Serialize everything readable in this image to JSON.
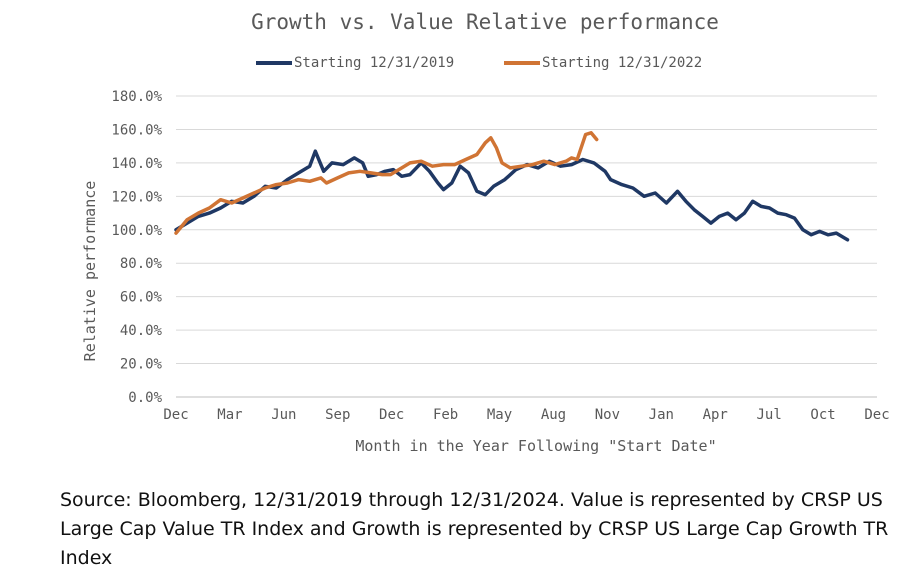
{
  "chart_data": {
    "type": "line",
    "title": "Growth vs. Value Relative performance",
    "xlabel": "Month in the Year Following \"Start Date\"",
    "ylabel": "Relative performance",
    "x_ticks": [
      "Dec",
      "Mar",
      "Jun",
      "Sep",
      "Dec",
      "Feb",
      "May",
      "Aug",
      "Nov",
      "Jan",
      "Apr",
      "Jul",
      "Oct",
      "Dec"
    ],
    "y_ticks": [
      "0.0%",
      "20.0%",
      "40.0%",
      "60.0%",
      "80.0%",
      "100.0%",
      "120.0%",
      "140.0%",
      "160.0%",
      "180.0%"
    ],
    "ylim": [
      0,
      180
    ],
    "x_unit": "trading days since start date",
    "xlim": [
      0,
      1258
    ],
    "grid": true,
    "legend_position": "top",
    "series": [
      {
        "name": "Starting 12/31/2019",
        "color": "#1f3864",
        "points": [
          [
            0,
            100
          ],
          [
            20,
            104
          ],
          [
            40,
            108
          ],
          [
            60,
            110
          ],
          [
            80,
            113
          ],
          [
            100,
            117
          ],
          [
            120,
            116
          ],
          [
            140,
            120
          ],
          [
            160,
            126
          ],
          [
            180,
            125
          ],
          [
            200,
            130
          ],
          [
            220,
            134
          ],
          [
            240,
            138
          ],
          [
            250,
            147
          ],
          [
            265,
            135
          ],
          [
            280,
            140
          ],
          [
            300,
            139
          ],
          [
            320,
            143
          ],
          [
            335,
            140
          ],
          [
            345,
            132
          ],
          [
            360,
            133
          ],
          [
            375,
            135
          ],
          [
            390,
            136
          ],
          [
            405,
            132
          ],
          [
            420,
            133
          ],
          [
            440,
            140
          ],
          [
            455,
            135
          ],
          [
            470,
            128
          ],
          [
            480,
            124
          ],
          [
            495,
            128
          ],
          [
            510,
            138
          ],
          [
            525,
            134
          ],
          [
            540,
            123
          ],
          [
            555,
            121
          ],
          [
            570,
            126
          ],
          [
            590,
            130
          ],
          [
            610,
            136
          ],
          [
            630,
            139
          ],
          [
            650,
            137
          ],
          [
            670,
            141
          ],
          [
            690,
            138
          ],
          [
            710,
            139
          ],
          [
            730,
            142
          ],
          [
            750,
            140
          ],
          [
            770,
            135
          ],
          [
            780,
            130
          ],
          [
            800,
            127
          ],
          [
            820,
            125
          ],
          [
            840,
            120
          ],
          [
            860,
            122
          ],
          [
            880,
            116
          ],
          [
            900,
            123
          ],
          [
            915,
            117
          ],
          [
            930,
            112
          ],
          [
            945,
            108
          ],
          [
            960,
            104
          ],
          [
            975,
            108
          ],
          [
            990,
            110
          ],
          [
            1005,
            106
          ],
          [
            1020,
            110
          ],
          [
            1035,
            117
          ],
          [
            1050,
            114
          ],
          [
            1065,
            113
          ],
          [
            1080,
            110
          ],
          [
            1095,
            109
          ],
          [
            1110,
            107
          ],
          [
            1125,
            100
          ],
          [
            1140,
            97
          ],
          [
            1155,
            99
          ],
          [
            1170,
            97
          ],
          [
            1185,
            98
          ],
          [
            1200,
            95
          ],
          [
            1205,
            94
          ]
        ]
      },
      {
        "name": "Starting 12/31/2022",
        "color": "#d07434",
        "points": [
          [
            0,
            98
          ],
          [
            20,
            106
          ],
          [
            40,
            110
          ],
          [
            60,
            113
          ],
          [
            80,
            118
          ],
          [
            100,
            116
          ],
          [
            120,
            119
          ],
          [
            140,
            122
          ],
          [
            160,
            125
          ],
          [
            180,
            127
          ],
          [
            200,
            128
          ],
          [
            220,
            130
          ],
          [
            240,
            129
          ],
          [
            260,
            131
          ],
          [
            270,
            128
          ],
          [
            290,
            131
          ],
          [
            310,
            134
          ],
          [
            330,
            135
          ],
          [
            350,
            134
          ],
          [
            370,
            133
          ],
          [
            385,
            133
          ],
          [
            400,
            136
          ],
          [
            420,
            140
          ],
          [
            440,
            141
          ],
          [
            460,
            138
          ],
          [
            480,
            139
          ],
          [
            500,
            139
          ],
          [
            520,
            142
          ],
          [
            540,
            145
          ],
          [
            555,
            152
          ],
          [
            565,
            155
          ],
          [
            575,
            149
          ],
          [
            585,
            140
          ],
          [
            600,
            137
          ],
          [
            620,
            138
          ],
          [
            640,
            139
          ],
          [
            660,
            141
          ],
          [
            680,
            139
          ],
          [
            700,
            141
          ],
          [
            710,
            143
          ],
          [
            720,
            142
          ],
          [
            735,
            157
          ],
          [
            745,
            158
          ],
          [
            755,
            154
          ]
        ]
      }
    ]
  },
  "source_note": "Source: Bloomberg, 12/31/2019 through 12/31/2024.  Value is represented by CRSP US Large Cap Value TR Index and Growth is represented by CRSP US Large Cap Growth TR Index"
}
